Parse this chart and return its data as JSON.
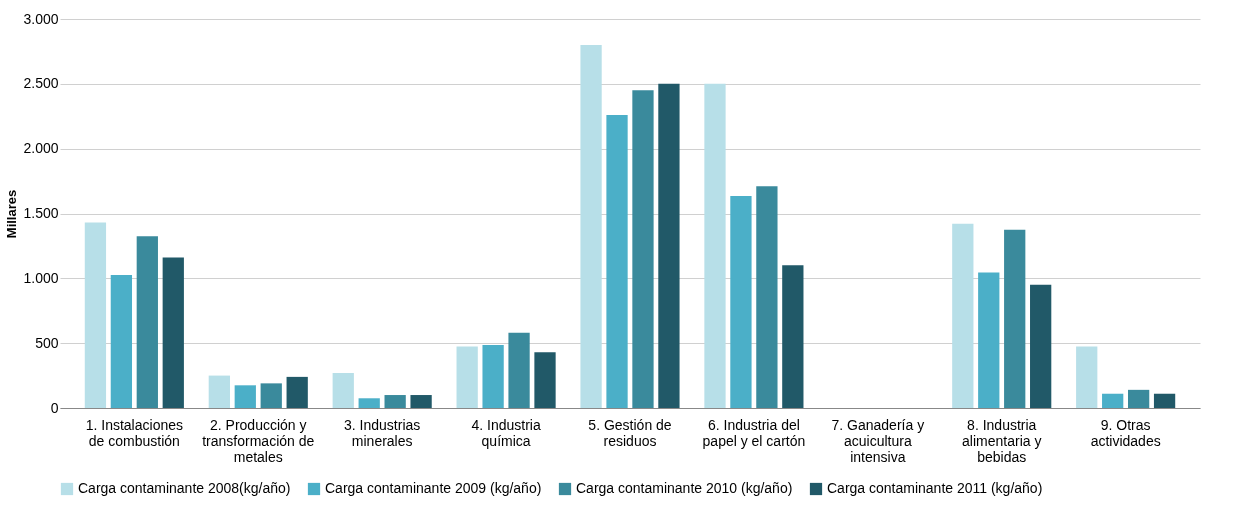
{
  "chart_data": {
    "type": "bar",
    "ylabel": "Millares",
    "categories": [
      "1. Instalaciones de combustión",
      "2. Producción y transformación de metales",
      "3. Industrias minerales",
      "4. Industria química",
      "5. Gestión de residuos",
      "6. Industria del papel y el cartón",
      "7. Ganadería y acuicultura intensiva",
      "8. Industria alimentaria y bebidas",
      "9. Otras actividades"
    ],
    "series": [
      {
        "name": "Carga contaminante  2008(kg/año)",
        "color": "#b7dfe8",
        "values": [
          1430,
          250,
          270,
          475,
          2800,
          2500,
          0,
          1420,
          475
        ]
      },
      {
        "name": "Carga contaminante  2009 (kg/año)",
        "color": "#4bafc8",
        "values": [
          1025,
          175,
          75,
          485,
          2260,
          1635,
          0,
          1045,
          110
        ]
      },
      {
        "name": "Carga contaminante  2010 (kg/año)",
        "color": "#3a8a9c",
        "values": [
          1325,
          190,
          100,
          580,
          2450,
          1710,
          0,
          1375,
          140
        ]
      },
      {
        "name": "Carga contaminante  2011 (kg/año)",
        "color": "#215968",
        "values": [
          1160,
          240,
          100,
          430,
          2500,
          1100,
          0,
          950,
          110
        ]
      }
    ],
    "ylim": [
      0,
      3000
    ],
    "yticks": [
      {
        "value": 0,
        "label": "0"
      },
      {
        "value": 500,
        "label": "500"
      },
      {
        "value": 1000,
        "label": "1.000"
      },
      {
        "value": 1500,
        "label": "1.500"
      },
      {
        "value": 2000,
        "label": "2.000"
      },
      {
        "value": 2500,
        "label": "2.500"
      },
      {
        "value": 3000,
        "label": "3.000"
      }
    ],
    "grid": "y",
    "legend": "bottom"
  }
}
